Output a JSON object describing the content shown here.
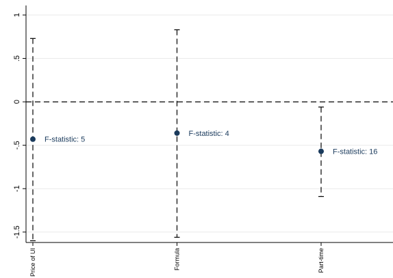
{
  "chart_data": {
    "type": "errorbar",
    "categories": [
      "Price of UI",
      "Formula",
      "Part-time"
    ],
    "series": [
      {
        "color": "#1a3a5c",
        "values": [
          -0.43,
          -0.36,
          -0.57
        ],
        "ci_low": [
          -1.6,
          -1.56,
          -1.09
        ],
        "ci_high": [
          0.73,
          0.83,
          -0.06
        ],
        "annotations": [
          "F-statistic: 5",
          "F-statistic: 4",
          "F-statistic: 16"
        ]
      }
    ],
    "ylim": [
      -1.62,
      1.11
    ],
    "yticks": [
      {
        "value": -1.5,
        "label": "-1.5"
      },
      -1,
      {
        "value": -0.5,
        "label": "-.5"
      },
      0,
      {
        "value": 0.5,
        "label": ".5"
      },
      1
    ],
    "reference_line": 0,
    "grid": true
  }
}
